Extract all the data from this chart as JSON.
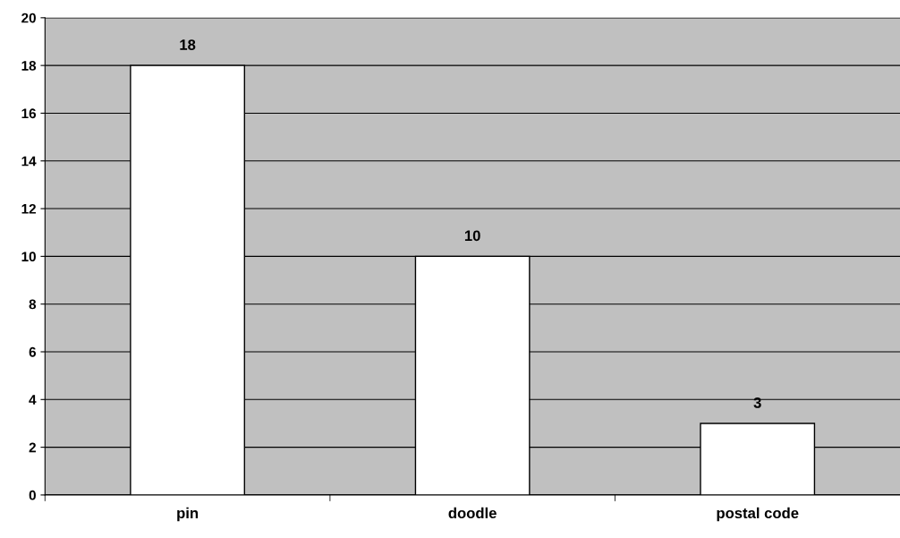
{
  "chart_data": {
    "type": "bar",
    "categories": [
      "pin",
      "doodle",
      "postal code"
    ],
    "values": [
      18,
      10,
      3
    ],
    "color": "#ffffff",
    "ylim": [
      0,
      20
    ],
    "yticks": [
      0,
      2,
      4,
      6,
      8,
      10,
      12,
      14,
      16,
      18,
      20
    ],
    "grid": "y",
    "data_labels": true
  }
}
